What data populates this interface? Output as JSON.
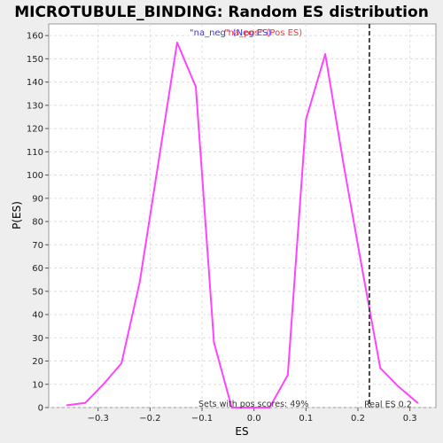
{
  "chart_data": {
    "type": "line",
    "title": "MICROTUBULE_BINDING: Random ES distribution",
    "xlabel": "ES",
    "ylabel": "P(ES)",
    "xlim": [
      -0.395,
      0.35
    ],
    "ylim": [
      0,
      165
    ],
    "x_ticks": [
      -0.3,
      -0.2,
      -0.1,
      0.0,
      0.1,
      0.2,
      0.3
    ],
    "x_tick_labels": [
      "−0.3",
      "−0.2",
      "−0.1",
      "0.0",
      "0.1",
      "0.2",
      "0.3"
    ],
    "y_ticks": [
      0,
      10,
      20,
      30,
      40,
      50,
      60,
      70,
      80,
      90,
      100,
      110,
      120,
      130,
      140,
      150,
      160
    ],
    "y_tick_labels": [
      "0",
      "10",
      "20",
      "30",
      "40",
      "50",
      "60",
      "70",
      "80",
      "90",
      "100",
      "110",
      "120",
      "130",
      "140",
      "150",
      "160"
    ],
    "grid": true,
    "legend": {
      "placement": "top-center",
      "entries": [
        {
          "label": "\"na_neg\" (Neg ES)",
          "color": "#3333ff"
        },
        {
          "label": "\"na_pos\" (Pos ES)",
          "color": "#ff3333"
        }
      ]
    },
    "series": [
      {
        "color": "#ff44ff",
        "x": [
          -0.36,
          -0.325,
          -0.29,
          -0.255,
          -0.22,
          -0.185,
          -0.148,
          -0.112,
          -0.077,
          -0.043,
          -0.008,
          0.03,
          0.065,
          0.1,
          0.137,
          0.172,
          0.207,
          0.243,
          0.278,
          0.315
        ],
        "y": [
          1,
          2,
          10,
          19,
          54,
          104,
          157,
          138,
          28,
          0,
          0,
          0,
          14,
          124,
          152,
          105,
          61,
          17,
          9,
          2
        ]
      }
    ],
    "reference_line": {
      "x": 0.222,
      "label": "Real ES 0.2",
      "color": "#444444"
    },
    "annotation": "Sets with pos scores: 49%"
  }
}
